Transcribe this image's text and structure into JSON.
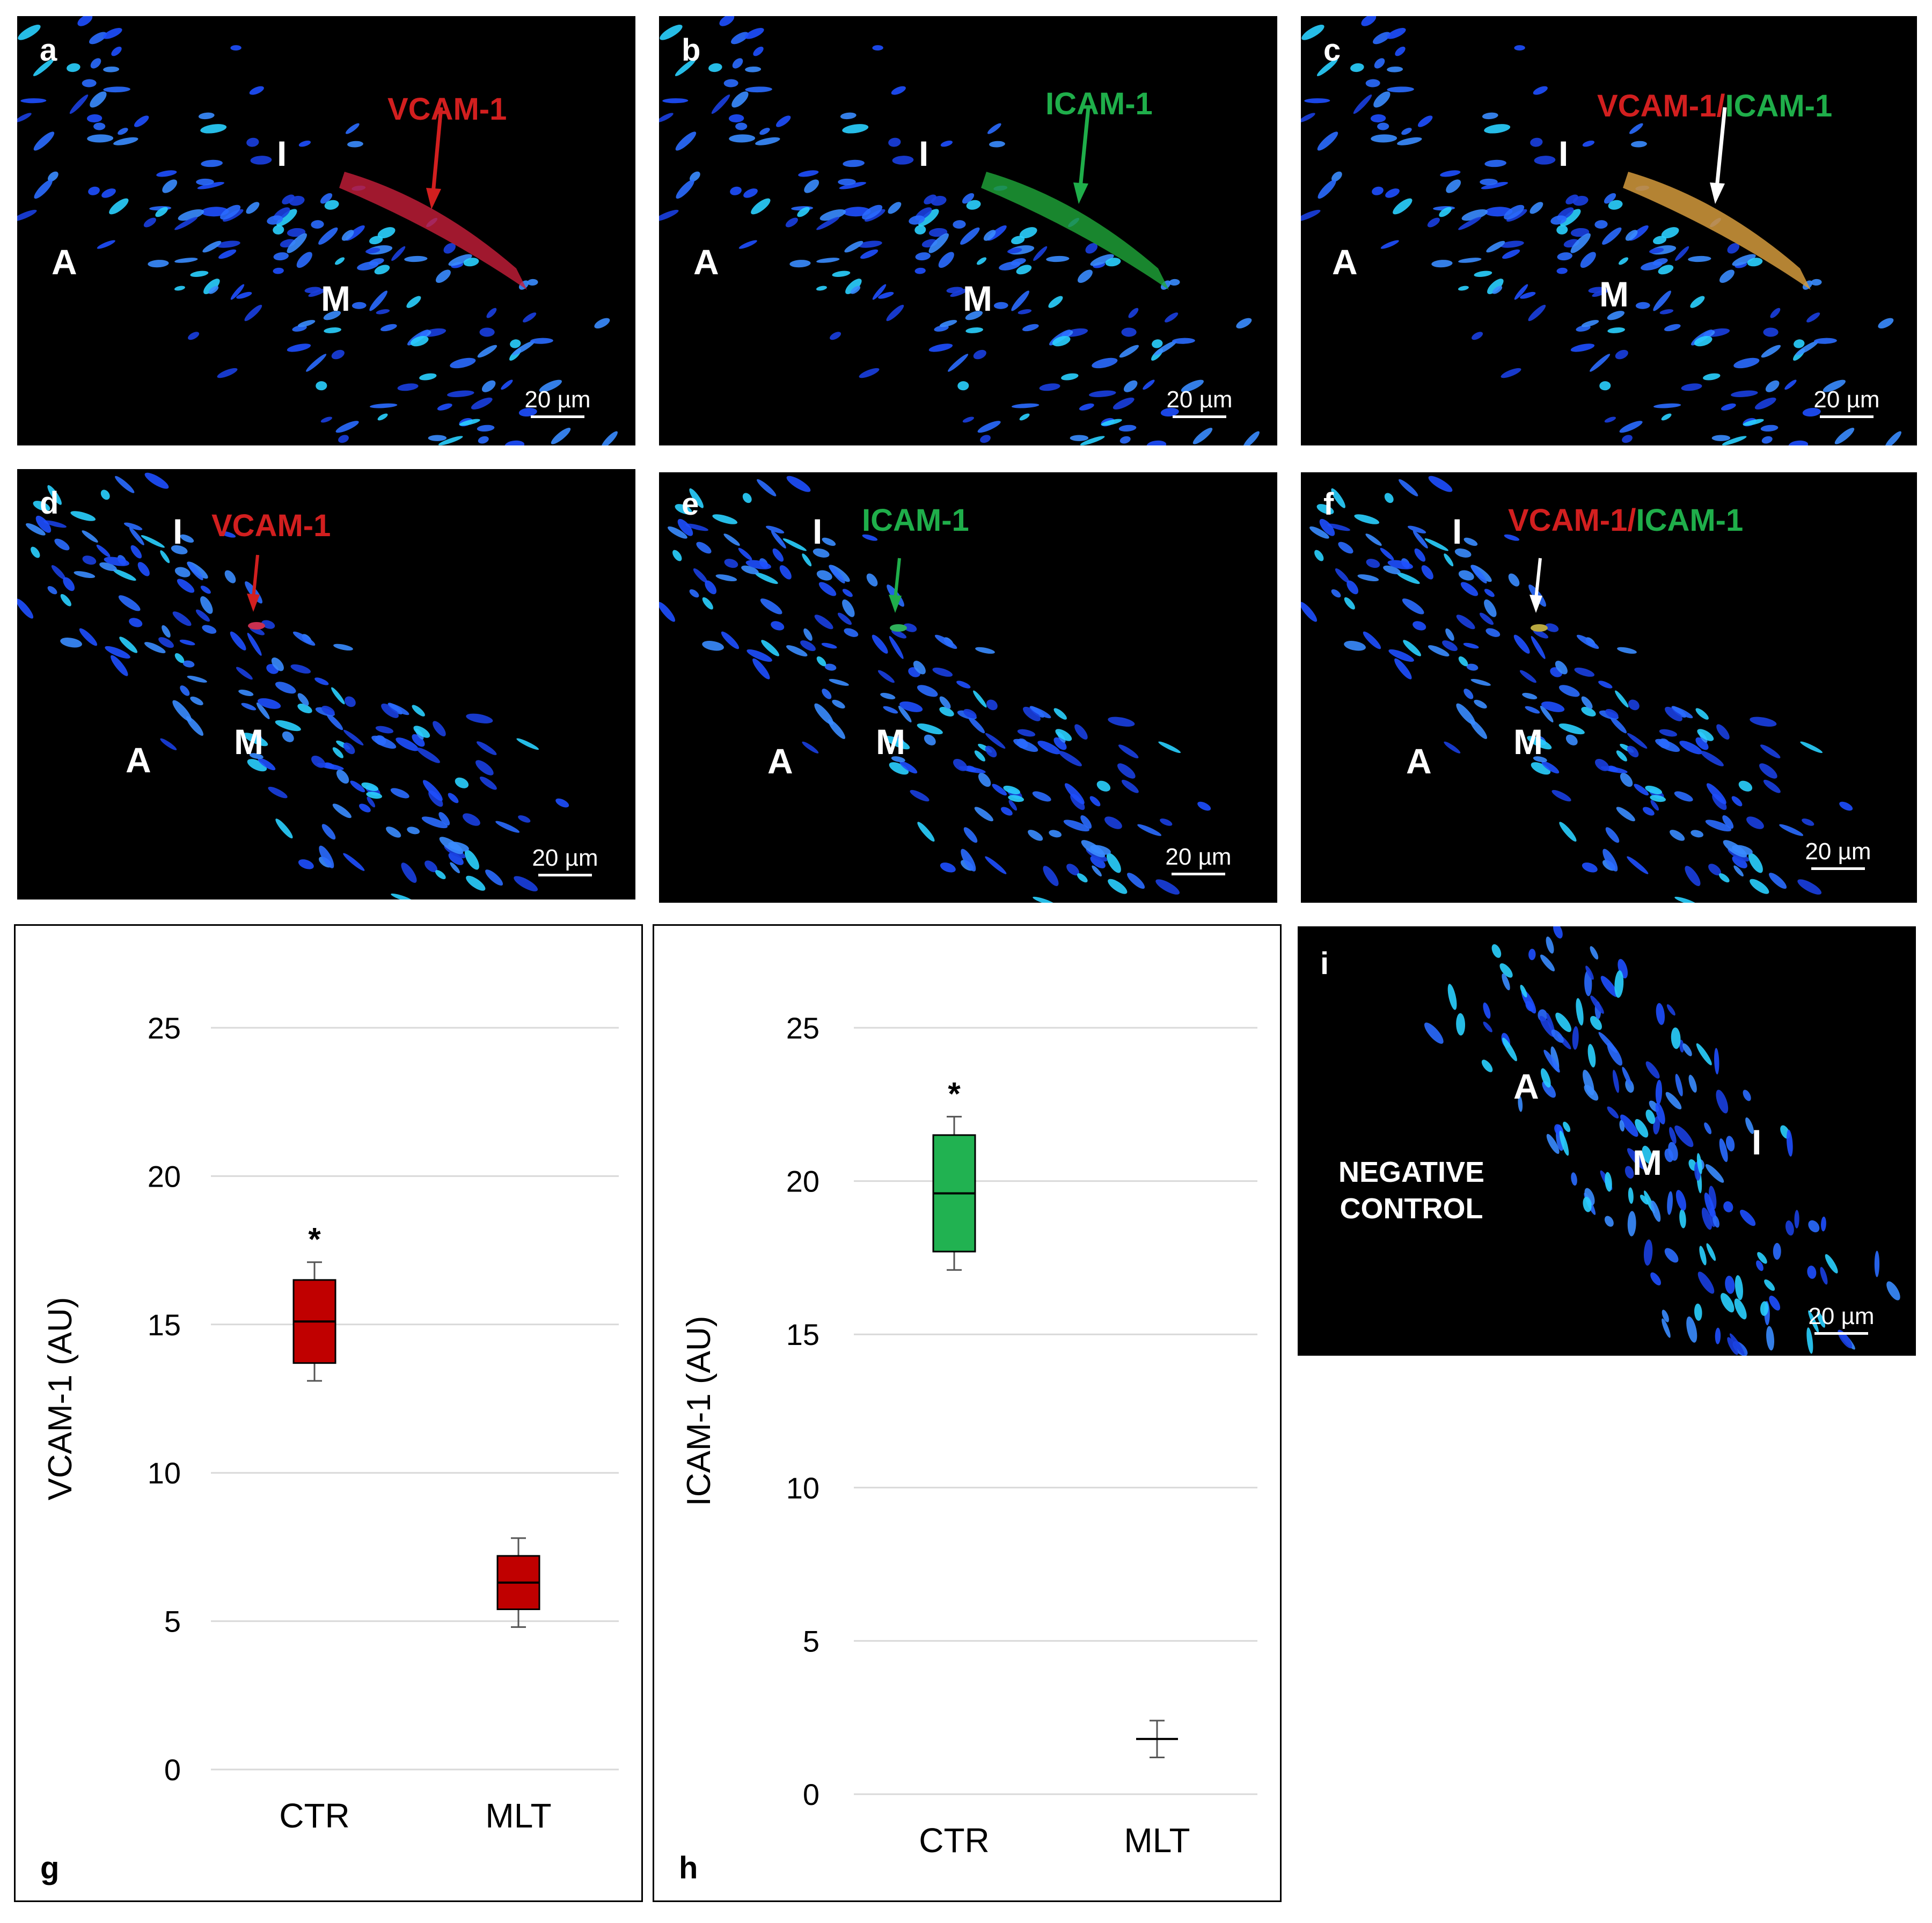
{
  "panels": {
    "a": {
      "label": "a",
      "stain": "VCAM-1",
      "regions": {
        "I": "I",
        "A": "A",
        "M": "M"
      },
      "scale": "20 µm"
    },
    "b": {
      "label": "b",
      "stain": "ICAM-1",
      "regions": {
        "I": "I",
        "A": "A",
        "M": "M"
      },
      "scale": "20 µm"
    },
    "c": {
      "label": "c",
      "stain_red": "VCAM-1",
      "stain_sep": "/",
      "stain_green": "ICAM-1",
      "regions": {
        "I": "I",
        "A": "A",
        "M": "M"
      },
      "scale": "20 µm"
    },
    "d": {
      "label": "d",
      "stain": "VCAM-1",
      "regions": {
        "I": "I",
        "A": "A",
        "M": "M"
      },
      "scale": "20 µm"
    },
    "e": {
      "label": "e",
      "stain": "ICAM-1",
      "regions": {
        "I": "I",
        "A": "A",
        "M": "M"
      },
      "scale": "20 µm"
    },
    "f": {
      "label": "f",
      "stain_red": "VCAM-1",
      "stain_sep": "/",
      "stain_green": "ICAM-1",
      "regions": {
        "I": "I",
        "A": "A",
        "M": "M"
      },
      "scale": "20 µm"
    },
    "i": {
      "label": "i",
      "negative_line1": "NEGATIVE",
      "negative_line2": "CONTROL",
      "regions": {
        "I": "I",
        "A": "A",
        "M": "M"
      },
      "scale": "20 µm"
    },
    "g": {
      "label": "g"
    },
    "h": {
      "label": "h"
    }
  },
  "colors": {
    "red_stain": "#d21f1f",
    "green_stain": "#1fae4a",
    "nuclei": "#1e56ff",
    "vcam_box": "#c00000",
    "icam_box": "#21b251"
  },
  "chart_data": [
    {
      "type": "box",
      "panel": "g",
      "ylabel": "VCAM-1 (AU)",
      "xlabel": "",
      "ylim": [
        0,
        25
      ],
      "yticks": [
        0,
        5,
        10,
        15,
        20,
        25
      ],
      "grid": true,
      "categories": [
        "CTR",
        "MLT"
      ],
      "color": "#c00000",
      "boxes": [
        {
          "category": "CTR",
          "min": 13.1,
          "q1": 13.7,
          "median": 15.1,
          "q3": 16.5,
          "max": 17.1,
          "annotation": "*"
        },
        {
          "category": "MLT",
          "min": 4.8,
          "q1": 5.4,
          "median": 6.3,
          "q3": 7.2,
          "max": 7.8,
          "annotation": ""
        }
      ]
    },
    {
      "type": "box",
      "panel": "h",
      "ylabel": "ICAM-1 (AU)",
      "xlabel": "",
      "ylim": [
        0,
        25
      ],
      "yticks": [
        0,
        5,
        10,
        15,
        20,
        25
      ],
      "grid": true,
      "categories": [
        "CTR",
        "MLT"
      ],
      "color": "#21b251",
      "boxes": [
        {
          "category": "CTR",
          "min": 17.1,
          "q1": 17.7,
          "median": 19.6,
          "q3": 21.5,
          "max": 22.1,
          "annotation": "*"
        },
        {
          "category": "MLT",
          "min": 1.2,
          "q1": 1.8,
          "median": 1.8,
          "q3": 1.8,
          "max": 2.4,
          "annotation": ""
        }
      ]
    }
  ]
}
